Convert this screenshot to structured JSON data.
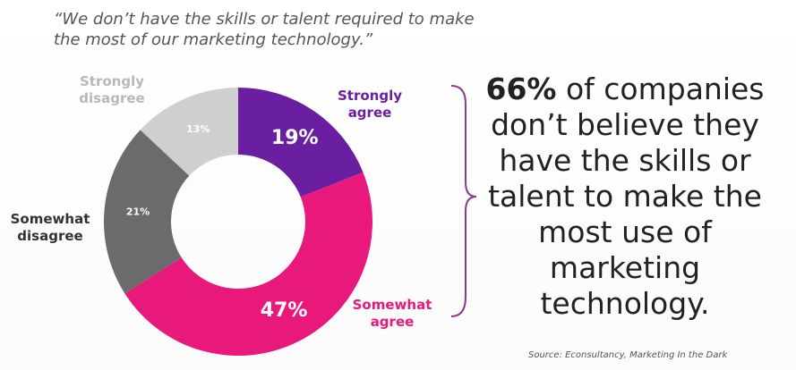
{
  "quote": "“We don’t have the skills or talent required to make the most of our marketing technology.”",
  "headline": {
    "number": "66%",
    "text": " of companies don’t believe they have the skills or talent to make the most use of marketing technology."
  },
  "source": "Source: Econsultancy, Marketing In the Dark",
  "colors": {
    "strongly_agree": "#6a1fa0",
    "somewhat_agree": "#e8197a",
    "somewhat_disagree": "#6b6b6b",
    "strongly_disagree": "#cfcfcf",
    "bracket": "#8a3a8a"
  },
  "chart_data": {
    "type": "pie",
    "variant": "donut",
    "slices": [
      {
        "label": "Strongly agree",
        "value": 19,
        "value_label": "19%",
        "color": "#6a1fa0"
      },
      {
        "label": "Somewhat agree",
        "value": 47,
        "value_label": "47%",
        "color": "#e8197a"
      },
      {
        "label": "Somewhat disagree",
        "value": 21,
        "value_label": "21%",
        "color": "#6b6b6b"
      },
      {
        "label": "Strongly disagree",
        "value": 13,
        "value_label": "13%",
        "color": "#cfcfcf"
      }
    ]
  }
}
